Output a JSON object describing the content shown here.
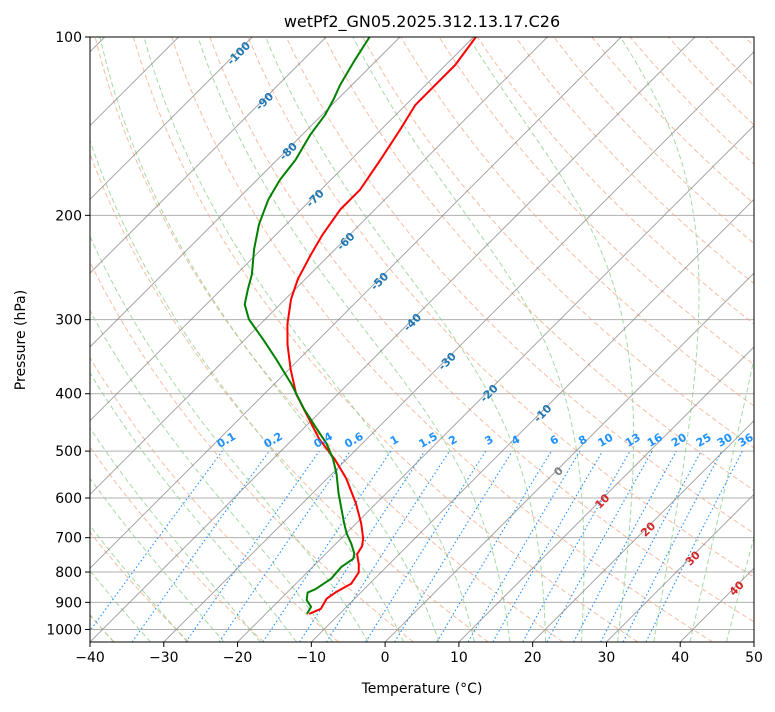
{
  "chart_data": {
    "type": "line",
    "subtype": "skew-t log-p",
    "title": "wetPf2_GN05.2025.312.13.17.C26",
    "xlabel": "Temperature (°C)",
    "ylabel": "Pressure (hPa)",
    "xlim": [
      -40,
      50
    ],
    "ylim": [
      1050,
      100
    ],
    "xticks": [
      "−40",
      "−30",
      "−20",
      "−10",
      "0",
      "10",
      "20",
      "30",
      "40",
      "50"
    ],
    "xtick_values": [
      -40,
      -30,
      -20,
      -10,
      0,
      10,
      20,
      30,
      40,
      50
    ],
    "yticks": [
      "100",
      "200",
      "300",
      "400",
      "500",
      "600",
      "700",
      "800",
      "900",
      "1000"
    ],
    "ytick_values": [
      100,
      200,
      300,
      400,
      500,
      600,
      700,
      800,
      900,
      1000
    ],
    "grid": true,
    "series": [
      {
        "name": "Temperature",
        "color": "#ff0000",
        "points": [
          [
            100,
            -69.7
          ],
          [
            111.5,
            -68.7
          ],
          [
            122.8,
            -68.7
          ],
          [
            130.2,
            -68.7
          ],
          [
            143.4,
            -67.4
          ],
          [
            161.1,
            -66.0
          ],
          [
            181.0,
            -64.7
          ],
          [
            195.5,
            -64.7
          ],
          [
            215.3,
            -63.7
          ],
          [
            232.6,
            -62.6
          ],
          [
            256.4,
            -61.0
          ],
          [
            277.2,
            -59.2
          ],
          [
            305.5,
            -56.3
          ],
          [
            330.0,
            -53.6
          ],
          [
            363.5,
            -49.8
          ],
          [
            400.3,
            -45.7
          ],
          [
            432.6,
            -41.6
          ],
          [
            476.6,
            -36.5
          ],
          [
            515.1,
            -31.7
          ],
          [
            556.5,
            -27.4
          ],
          [
            613.2,
            -22.7
          ],
          [
            662.6,
            -19.3
          ],
          [
            702.3,
            -17.0
          ],
          [
            724.0,
            -16.1
          ],
          [
            746.4,
            -15.7
          ],
          [
            776.4,
            -14.1
          ],
          [
            801.3,
            -13.0
          ],
          [
            836.7,
            -12.5
          ],
          [
            863.4,
            -13.4
          ],
          [
            887.5,
            -13.8
          ],
          [
            923.0,
            -13.2
          ],
          [
            930.3,
            -13.6
          ],
          [
            941.3,
            -14.1
          ]
        ]
      },
      {
        "name": "Dewpoint",
        "color": "#008000",
        "points": [
          [
            100,
            -84.1
          ],
          [
            109.3,
            -83.0
          ],
          [
            120.5,
            -81.6
          ],
          [
            127.7,
            -80.5
          ],
          [
            135.3,
            -79.6
          ],
          [
            146.2,
            -78.9
          ],
          [
            161.1,
            -77.5
          ],
          [
            174.2,
            -76.9
          ],
          [
            188.1,
            -75.8
          ],
          [
            207.1,
            -73.7
          ],
          [
            228.1,
            -71.0
          ],
          [
            251.5,
            -67.9
          ],
          [
            266.6,
            -66.4
          ],
          [
            282.6,
            -64.8
          ],
          [
            299.6,
            -62.2
          ],
          [
            323.6,
            -57.6
          ],
          [
            349.8,
            -53.1
          ],
          [
            385.0,
            -47.7
          ],
          [
            424.3,
            -42.6
          ],
          [
            458.2,
            -38.2
          ],
          [
            485.9,
            -34.8
          ],
          [
            515.1,
            -31.9
          ],
          [
            546.0,
            -29.4
          ],
          [
            590.1,
            -26.4
          ],
          [
            625.4,
            -24.0
          ],
          [
            662.6,
            -21.6
          ],
          [
            688.9,
            -19.9
          ],
          [
            716.7,
            -17.9
          ],
          [
            745.6,
            -16.1
          ],
          [
            760.0,
            -15.6
          ],
          [
            784.0,
            -16.1
          ],
          [
            821.4,
            -15.9
          ],
          [
            855.2,
            -16.6
          ],
          [
            866.6,
            -17.2
          ],
          [
            892.3,
            -16.3
          ],
          [
            915.8,
            -14.8
          ],
          [
            941.3,
            -14.4
          ]
        ]
      }
    ],
    "isotherm_labels": [
      {
        "t": -100,
        "text": "-100"
      },
      {
        "t": -90,
        "text": "-90"
      },
      {
        "t": -80,
        "text": "-80"
      },
      {
        "t": -70,
        "text": "-70"
      },
      {
        "t": -60,
        "text": "-60"
      },
      {
        "t": -50,
        "text": "-50"
      },
      {
        "t": -40,
        "text": "-40"
      },
      {
        "t": -30,
        "text": "-30"
      },
      {
        "t": -20,
        "text": "-20"
      },
      {
        "t": -10,
        "text": "-10"
      },
      {
        "t": 0,
        "text": "0"
      },
      {
        "t": 10,
        "text": "10"
      },
      {
        "t": 20,
        "text": "20"
      },
      {
        "t": 30,
        "text": "30"
      },
      {
        "t": 40,
        "text": "40"
      }
    ],
    "mixing_ratio_labels": [
      "0.1",
      "0.2",
      "0.4",
      "0.6",
      "1",
      "1.5",
      "2",
      "3",
      "4",
      "6",
      "8",
      "10",
      "13",
      "16",
      "20",
      "25",
      "30",
      "36"
    ],
    "mixing_ratio_values": [
      0.1,
      0.2,
      0.4,
      0.6,
      1,
      1.5,
      2,
      3,
      4,
      6,
      8,
      10,
      13,
      16,
      20,
      25,
      30,
      36
    ],
    "colors": {
      "isotherm": "#808080",
      "dry_adiabat": "#f4a582",
      "moist_adiabat": "#8fcf8f",
      "mixing_ratio": "#1e90ff",
      "label_cold": "#1f77b4",
      "label_zero": "#808080",
      "label_warm": "#d62728"
    }
  }
}
